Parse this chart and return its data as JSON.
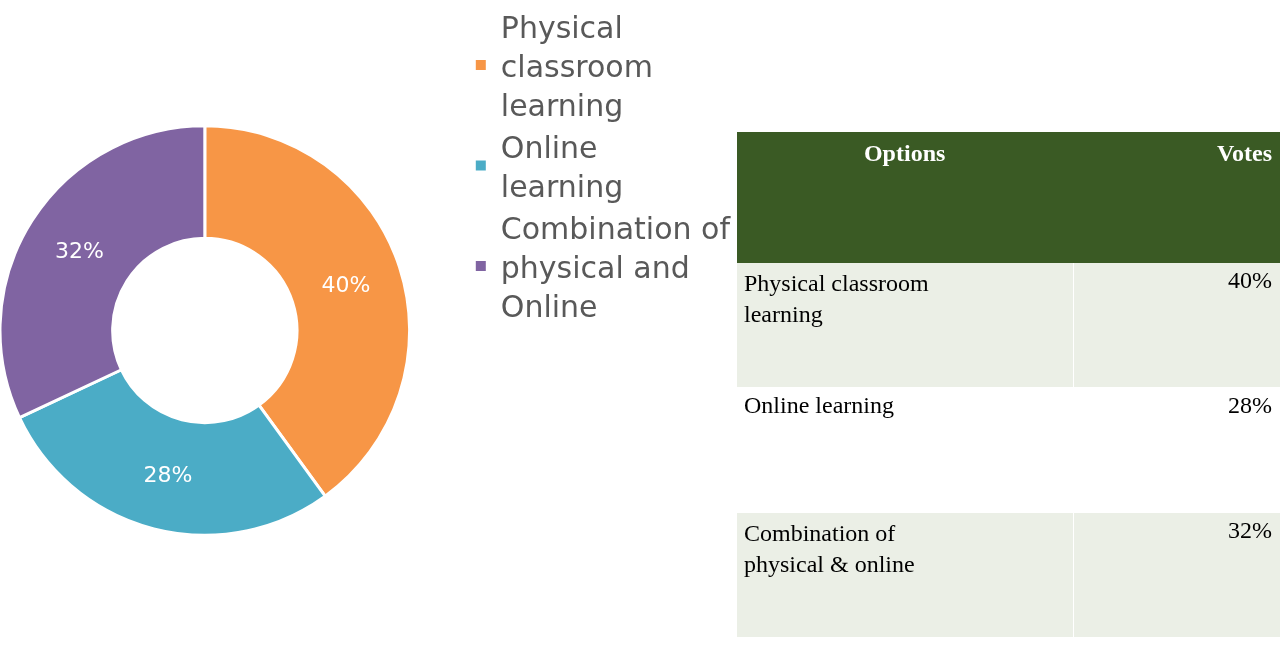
{
  "chart_data": [
    {
      "type": "donut",
      "categories": [
        "Physical classroom learning",
        "Online learning",
        "Combination of physical and Online"
      ],
      "values": [
        40,
        28,
        32
      ],
      "colors": [
        "#f79646",
        "#4bacc6",
        "#8064a2"
      ],
      "value_labels": [
        "40%",
        "28%",
        "32%"
      ],
      "legend": "right"
    },
    {
      "type": "other",
      "annotations": [
        "Options",
        "Votes"
      ],
      "categories": [
        "Physical classroom learning",
        "Online learning",
        "Combination of physical & online"
      ],
      "value_labels": [
        "40%",
        "28%",
        "32%"
      ]
    }
  ]
}
